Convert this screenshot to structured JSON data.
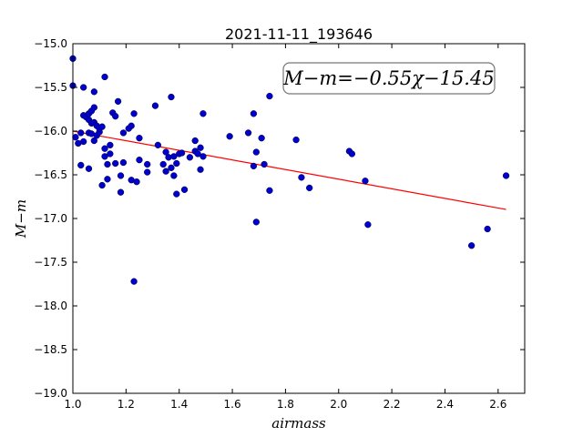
{
  "chart_data": {
    "type": "scatter",
    "title": "2021-11-11_193646",
    "xlabel": "airmass",
    "ylabel": "M−m",
    "xlim": [
      1.0,
      2.7
    ],
    "ylim": [
      -15.0,
      -19.0
    ],
    "y_inverted": true,
    "x_ticks": [
      "1.0",
      "1.2",
      "1.4",
      "1.6",
      "1.8",
      "2.0",
      "2.2",
      "2.4",
      "2.6"
    ],
    "y_ticks": [
      "−15.0",
      "−15.5",
      "−16.0",
      "−16.5",
      "−17.0",
      "−17.5",
      "−18.0",
      "−18.5",
      "−19.0"
    ],
    "grid": false,
    "annotation": "M−m=−0.55χ−15.45",
    "fit": {
      "slope": -0.55,
      "intercept": -15.45,
      "x_range": [
        1.0,
        2.63
      ],
      "color": "#ff0000"
    },
    "point_color": "#0000cc",
    "series": [
      {
        "points": [
          [
            1.0,
            -15.17
          ],
          [
            1.0,
            -15.48
          ],
          [
            1.01,
            -16.07
          ],
          [
            1.02,
            -16.14
          ],
          [
            1.03,
            -16.02
          ],
          [
            1.03,
            -16.39
          ],
          [
            1.04,
            -15.5
          ],
          [
            1.04,
            -15.82
          ],
          [
            1.04,
            -16.12
          ],
          [
            1.05,
            -15.84
          ],
          [
            1.06,
            -15.8
          ],
          [
            1.06,
            -15.87
          ],
          [
            1.06,
            -16.02
          ],
          [
            1.06,
            -16.43
          ],
          [
            1.07,
            -15.77
          ],
          [
            1.07,
            -15.91
          ],
          [
            1.07,
            -16.03
          ],
          [
            1.08,
            -15.73
          ],
          [
            1.08,
            -15.55
          ],
          [
            1.08,
            -16.11
          ],
          [
            1.08,
            -15.9
          ],
          [
            1.09,
            -15.94
          ],
          [
            1.09,
            -16.05
          ],
          [
            1.1,
            -16.01
          ],
          [
            1.1,
            -15.97
          ],
          [
            1.11,
            -15.95
          ],
          [
            1.11,
            -16.62
          ],
          [
            1.12,
            -15.38
          ],
          [
            1.12,
            -16.2
          ],
          [
            1.12,
            -16.29
          ],
          [
            1.13,
            -16.38
          ],
          [
            1.13,
            -16.55
          ],
          [
            1.14,
            -16.16
          ],
          [
            1.14,
            -16.26
          ],
          [
            1.15,
            -15.79
          ],
          [
            1.16,
            -16.37
          ],
          [
            1.16,
            -15.83
          ],
          [
            1.17,
            -15.66
          ],
          [
            1.18,
            -16.7
          ],
          [
            1.18,
            -16.51
          ],
          [
            1.19,
            -16.02
          ],
          [
            1.19,
            -16.36
          ],
          [
            1.21,
            -15.97
          ],
          [
            1.22,
            -15.94
          ],
          [
            1.22,
            -16.56
          ],
          [
            1.23,
            -15.8
          ],
          [
            1.23,
            -17.72
          ],
          [
            1.24,
            -16.58
          ],
          [
            1.25,
            -16.08
          ],
          [
            1.25,
            -16.33
          ],
          [
            1.28,
            -16.47
          ],
          [
            1.28,
            -16.38
          ],
          [
            1.31,
            -15.71
          ],
          [
            1.32,
            -16.16
          ],
          [
            1.34,
            -16.38
          ],
          [
            1.35,
            -16.46
          ],
          [
            1.35,
            -16.24
          ],
          [
            1.36,
            -16.3
          ],
          [
            1.37,
            -15.61
          ],
          [
            1.37,
            -16.42
          ],
          [
            1.38,
            -16.29
          ],
          [
            1.38,
            -16.51
          ],
          [
            1.39,
            -16.37
          ],
          [
            1.39,
            -16.72
          ],
          [
            1.4,
            -16.26
          ],
          [
            1.41,
            -16.25
          ],
          [
            1.42,
            -16.67
          ],
          [
            1.44,
            -16.3
          ],
          [
            1.46,
            -16.11
          ],
          [
            1.46,
            -16.23
          ],
          [
            1.47,
            -16.26
          ],
          [
            1.48,
            -16.44
          ],
          [
            1.49,
            -15.8
          ],
          [
            1.49,
            -16.29
          ],
          [
            1.48,
            -16.19
          ],
          [
            1.59,
            -16.06
          ],
          [
            1.66,
            -16.02
          ],
          [
            1.68,
            -15.8
          ],
          [
            1.68,
            -16.4
          ],
          [
            1.69,
            -16.24
          ],
          [
            1.69,
            -17.04
          ],
          [
            1.71,
            -16.08
          ],
          [
            1.72,
            -16.38
          ],
          [
            1.74,
            -15.6
          ],
          [
            1.74,
            -16.68
          ],
          [
            1.84,
            -16.1
          ],
          [
            1.86,
            -16.53
          ],
          [
            1.89,
            -16.65
          ],
          [
            2.04,
            -16.23
          ],
          [
            2.05,
            -16.26
          ],
          [
            2.1,
            -16.57
          ],
          [
            2.11,
            -17.07
          ],
          [
            2.5,
            -17.31
          ],
          [
            2.56,
            -17.12
          ],
          [
            2.63,
            -16.51
          ]
        ]
      }
    ]
  }
}
